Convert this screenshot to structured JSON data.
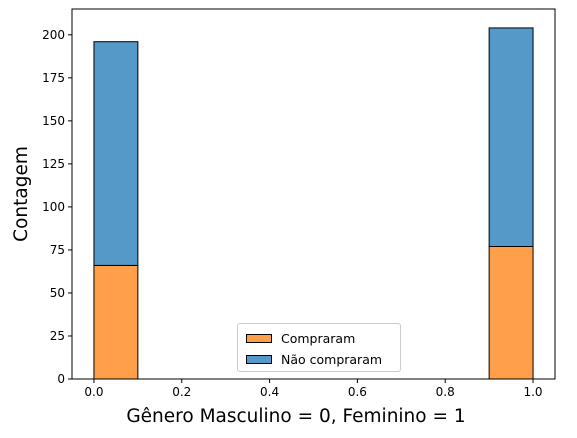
{
  "chart_data": {
    "type": "bar",
    "title": "",
    "xlabel": "Gênero Masculino = 0, Feminino = 1",
    "ylabel": "Contagem",
    "xlim": [
      -0.05,
      1.05
    ],
    "ylim": [
      0,
      215
    ],
    "x_ticks": [
      "0.0",
      "0.2",
      "0.4",
      "0.6",
      "0.8",
      "1.0"
    ],
    "y_ticks": [
      "0",
      "25",
      "50",
      "75",
      "100",
      "125",
      "150",
      "175",
      "200"
    ],
    "bin_width": 0.1,
    "stacked": true,
    "categories": [
      "0",
      "1"
    ],
    "x": [
      0.0,
      0.9
    ],
    "series": [
      {
        "name": "Compraram",
        "values": [
          66,
          77
        ],
        "color": "#ff9f4a"
      },
      {
        "name": "Não compraram",
        "values": [
          130,
          127
        ],
        "color": "#5599c8"
      }
    ],
    "legend_position": "lower center",
    "grid": false
  },
  "legend": {
    "items": [
      {
        "label": "Compraram",
        "color": "#ff9f4a"
      },
      {
        "label": "Não compraram",
        "color": "#5599c8"
      }
    ]
  }
}
